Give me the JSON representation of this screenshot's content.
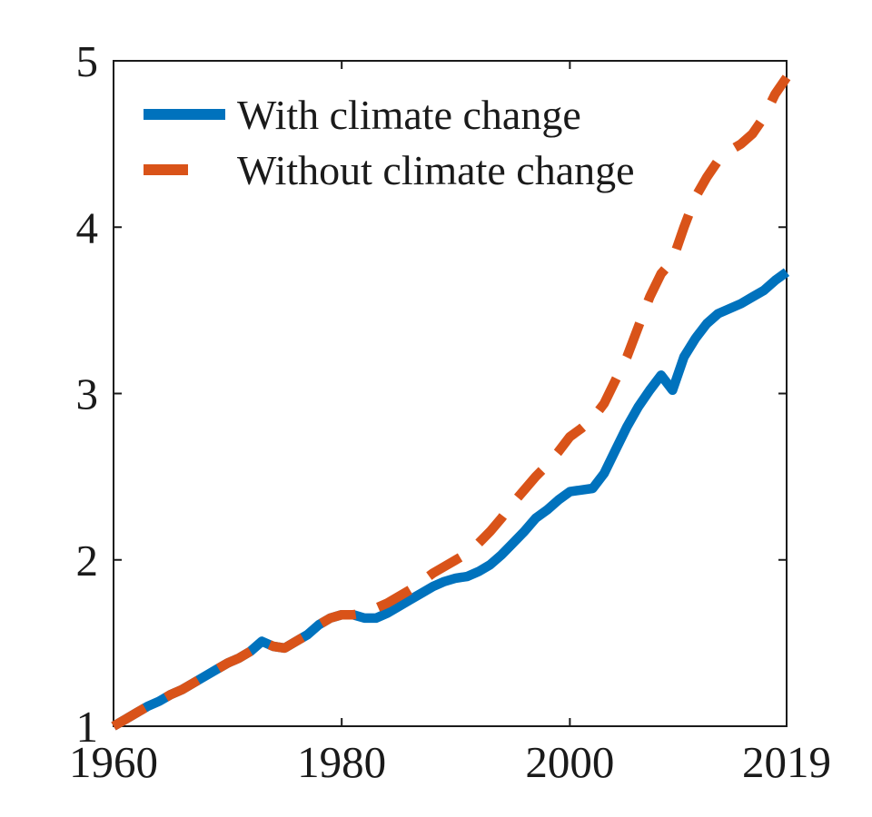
{
  "figure": {
    "background_color": "#ffffff",
    "axis_color": "#1a1a1a"
  },
  "chart_data": {
    "type": "line",
    "title": "",
    "xlabel": "",
    "ylabel": "",
    "grid": false,
    "legend_position": "top-left-inside",
    "x_range": [
      1960,
      2019
    ],
    "y_range": [
      1,
      5
    ],
    "x_ticks": [
      1960,
      1980,
      2000,
      2019
    ],
    "y_ticks": [
      1,
      2,
      3,
      4,
      5
    ],
    "x": [
      1960,
      1961,
      1962,
      1963,
      1964,
      1965,
      1966,
      1967,
      1968,
      1969,
      1970,
      1971,
      1972,
      1973,
      1974,
      1975,
      1976,
      1977,
      1978,
      1979,
      1980,
      1981,
      1982,
      1983,
      1984,
      1985,
      1986,
      1987,
      1988,
      1989,
      1990,
      1991,
      1992,
      1993,
      1994,
      1995,
      1996,
      1997,
      1998,
      1999,
      2000,
      2001,
      2002,
      2003,
      2004,
      2005,
      2006,
      2007,
      2008,
      2009,
      2010,
      2011,
      2012,
      2013,
      2014,
      2015,
      2016,
      2017,
      2018,
      2019
    ],
    "series": [
      {
        "name": "With climate change",
        "color": "#0072BD",
        "line_style": "solid",
        "values": [
          1.0,
          1.04,
          1.08,
          1.12,
          1.15,
          1.19,
          1.22,
          1.26,
          1.3,
          1.34,
          1.38,
          1.41,
          1.45,
          1.51,
          1.48,
          1.47,
          1.51,
          1.55,
          1.61,
          1.65,
          1.67,
          1.67,
          1.65,
          1.65,
          1.68,
          1.72,
          1.76,
          1.8,
          1.84,
          1.87,
          1.89,
          1.9,
          1.93,
          1.97,
          2.03,
          2.1,
          2.17,
          2.25,
          2.3,
          2.36,
          2.41,
          2.42,
          2.43,
          2.52,
          2.66,
          2.8,
          2.92,
          3.02,
          3.11,
          3.02,
          3.22,
          3.33,
          3.42,
          3.48,
          3.51,
          3.54,
          3.58,
          3.62,
          3.68,
          3.73
        ]
      },
      {
        "name": "Without climate change",
        "color": "#D95319",
        "line_style": "dashed",
        "values": [
          1.0,
          1.04,
          1.08,
          1.12,
          1.15,
          1.19,
          1.22,
          1.26,
          1.3,
          1.34,
          1.38,
          1.41,
          1.45,
          1.51,
          1.48,
          1.47,
          1.51,
          1.55,
          1.61,
          1.65,
          1.67,
          1.67,
          1.68,
          1.71,
          1.74,
          1.78,
          1.82,
          1.87,
          1.92,
          1.96,
          2.0,
          2.04,
          2.1,
          2.17,
          2.25,
          2.34,
          2.42,
          2.5,
          2.57,
          2.65,
          2.74,
          2.79,
          2.85,
          2.94,
          3.08,
          3.22,
          3.4,
          3.58,
          3.72,
          3.8,
          4.0,
          4.18,
          4.3,
          4.4,
          4.46,
          4.5,
          4.56,
          4.66,
          4.8,
          4.9
        ]
      }
    ]
  }
}
